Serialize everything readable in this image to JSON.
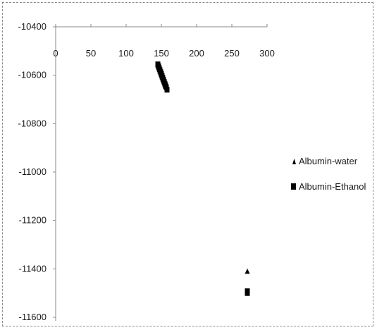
{
  "chart_data": {
    "type": "scatter",
    "title": "",
    "xlabel": "",
    "ylabel": "",
    "xlim": [
      0,
      300
    ],
    "ylim": [
      -11600,
      -10400
    ],
    "x_ticks": [
      0,
      50,
      100,
      150,
      200,
      250,
      300
    ],
    "y_ticks": [
      -10400,
      -10600,
      -10800,
      -11000,
      -11200,
      -11400,
      -11600
    ],
    "x_tick_labels": [
      "0",
      "50",
      "100",
      "150",
      "200",
      "250",
      "300"
    ],
    "y_tick_labels": [
      "-10400",
      "-10600",
      "-10800",
      "-11000",
      "-11200",
      "-11400",
      "-11600"
    ],
    "x_axis_position": "top",
    "grid": false,
    "legend_position": "right",
    "series": [
      {
        "name": "Albumin-water",
        "marker": "triangle",
        "color": "#000000",
        "x": [
          145,
          146,
          147,
          148,
          149,
          150,
          151,
          152,
          153,
          154,
          155,
          156,
          157,
          158,
          272
        ],
        "y": [
          -10560,
          -10568,
          -10576,
          -10584,
          -10592,
          -10600,
          -10608,
          -10616,
          -10624,
          -10632,
          -10640,
          -10646,
          -10652,
          -10658,
          -11410
        ]
      },
      {
        "name": "Albumin-Ethanol",
        "marker": "square",
        "color": "#000000",
        "x": [
          145,
          146,
          147,
          148,
          149,
          150,
          151,
          152,
          153,
          154,
          155,
          156,
          157,
          158,
          272,
          272
        ],
        "y": [
          -10555,
          -10563,
          -10571,
          -10579,
          -10587,
          -10595,
          -10603,
          -10611,
          -10619,
          -10627,
          -10635,
          -10642,
          -10650,
          -10660,
          -11492,
          -11500
        ]
      }
    ]
  }
}
